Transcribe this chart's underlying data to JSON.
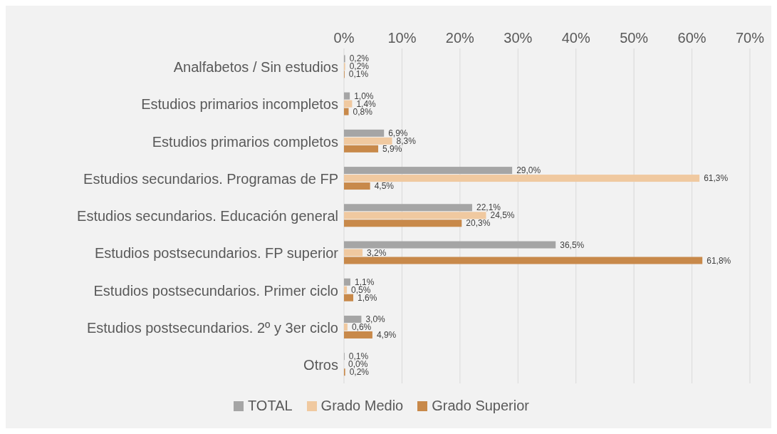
{
  "chart_data": {
    "type": "bar",
    "orientation": "horizontal",
    "categories": [
      "Analfabetos / Sin estudios",
      "Estudios primarios incompletos",
      "Estudios primarios completos",
      "Estudios secundarios. Programas de FP",
      "Estudios secundarios. Educación general",
      "Estudios postsecundarios. FP superior",
      "Estudios postsecundarios. Primer ciclo",
      "Estudios postsecundarios. 2º y 3er ciclo",
      "Otros"
    ],
    "series": [
      {
        "name": "TOTAL",
        "color": "#a5a5a5",
        "values": [
          0.2,
          1.0,
          6.9,
          29.0,
          22.1,
          36.5,
          1.1,
          3.0,
          0.1
        ],
        "value_labels": [
          "0,2%",
          "1,0%",
          "6,9%",
          "29,0%",
          "22,1%",
          "36,5%",
          "1,1%",
          "3,0%",
          "0,1%"
        ]
      },
      {
        "name": "Grado Medio",
        "color": "#f0c9a0",
        "values": [
          0.2,
          1.4,
          8.3,
          61.3,
          24.5,
          3.2,
          0.5,
          0.6,
          0.0
        ],
        "value_labels": [
          "0,2%",
          "1,4%",
          "8,3%",
          "61,3%",
          "24,5%",
          "3,2%",
          "0,5%",
          "0,6%",
          "0,0%"
        ]
      },
      {
        "name": "Grado Superior",
        "color": "#c8894a",
        "values": [
          0.1,
          0.8,
          5.9,
          4.5,
          20.3,
          61.8,
          1.6,
          4.9,
          0.2
        ],
        "value_labels": [
          "0,1%",
          "0,8%",
          "5,9%",
          "4,5%",
          "20,3%",
          "61,8%",
          "1,6%",
          "4,9%",
          "0,2%"
        ]
      }
    ],
    "xlim": [
      0,
      70
    ],
    "xticks": [
      {
        "value": 0,
        "label": "0%"
      },
      {
        "value": 10,
        "label": "10%"
      },
      {
        "value": 20,
        "label": "20%"
      },
      {
        "value": 30,
        "label": "30%"
      },
      {
        "value": 40,
        "label": "40%"
      },
      {
        "value": 50,
        "label": "50%"
      },
      {
        "value": 60,
        "label": "60%"
      },
      {
        "value": 70,
        "label": "70%"
      }
    ],
    "grid": "x",
    "legend": "bottom"
  }
}
